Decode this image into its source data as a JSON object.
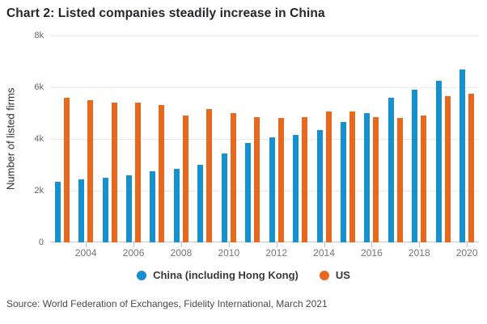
{
  "title": "Chart 2: Listed companies steadily increase in China",
  "source_note": "Source: World Federation of Exchanges, Fidelity International, March 2021",
  "colors": {
    "china_blue": "#1691cf",
    "us_orange": "#e8691d",
    "grid": "#e9e9e9",
    "axis": "#c5c5c5",
    "title_text": "#23262b",
    "tick_text": "#767676"
  },
  "chart_data": {
    "type": "bar",
    "title": "Chart 2: Listed companies steadily increase in China",
    "xlabel": "",
    "ylabel": "Number of listed firms",
    "ylim": [
      0,
      8000
    ],
    "grid": true,
    "legend_position": "bottom",
    "yticks": [
      {
        "value": 0,
        "label": "0"
      },
      {
        "value": 2000,
        "label": "2k"
      },
      {
        "value": 4000,
        "label": "4k"
      },
      {
        "value": 6000,
        "label": "6k"
      },
      {
        "value": 8000,
        "label": "8k"
      }
    ],
    "categories": [
      "2003",
      "2004",
      "2005",
      "2006",
      "2007",
      "2008",
      "2009",
      "2010",
      "2011",
      "2012",
      "2013",
      "2014",
      "2015",
      "2016",
      "2017",
      "2018",
      "2019",
      "2020"
    ],
    "xtick_labels": [
      "2004",
      "2006",
      "2008",
      "2010",
      "2012",
      "2014",
      "2016",
      "2018",
      "2020"
    ],
    "series": [
      {
        "name": "China (including Hong Kong)",
        "color": "#1691cf",
        "values": [
          2350,
          2450,
          2500,
          2600,
          2750,
          2850,
          3000,
          3450,
          3850,
          4050,
          4150,
          4350,
          4650,
          5000,
          5600,
          5900,
          6250,
          6700
        ]
      },
      {
        "name": "US",
        "color": "#e8691d",
        "values": [
          5600,
          5500,
          5400,
          5400,
          5300,
          4900,
          5150,
          5000,
          4850,
          4800,
          4850,
          5050,
          5050,
          4850,
          4800,
          4900,
          5650,
          5750
        ]
      }
    ]
  }
}
